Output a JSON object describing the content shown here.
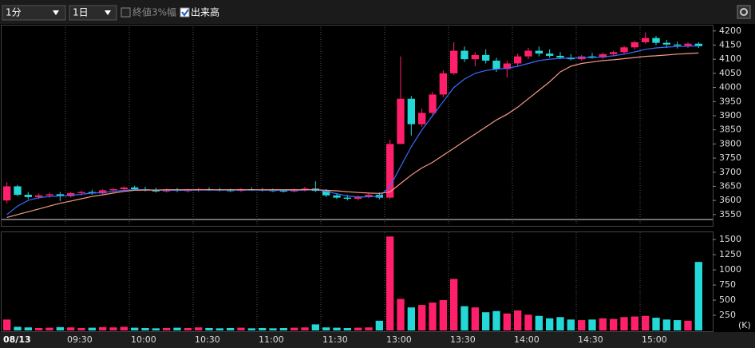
{
  "toolbar": {
    "interval": "1分",
    "span": "1日",
    "option_close_range": "終値3%幅",
    "option_volume": "出来高"
  },
  "chart_data": [
    {
      "type": "candlestick",
      "categories": [
        "08/13",
        null,
        null,
        null,
        null,
        null,
        "09:30",
        null,
        null,
        null,
        null,
        null,
        "10:00",
        null,
        null,
        null,
        null,
        null,
        "10:30",
        null,
        null,
        null,
        null,
        null,
        "11:00",
        null,
        null,
        null,
        null,
        null,
        "11:30",
        null,
        null,
        null,
        null,
        null,
        "13:00",
        null,
        null,
        null,
        null,
        null,
        "13:30",
        null,
        null,
        null,
        null,
        null,
        "14:00",
        null,
        null,
        null,
        null,
        null,
        "14:30",
        null,
        null,
        null,
        null,
        null,
        "15:00",
        null,
        null,
        null,
        null,
        null
      ],
      "ohlc": [
        [
          3600,
          3665,
          3590,
          3650
        ],
        [
          3650,
          3655,
          3615,
          3620
        ],
        [
          3620,
          3630,
          3605,
          3612
        ],
        [
          3612,
          3625,
          3605,
          3618
        ],
        [
          3618,
          3628,
          3610,
          3622
        ],
        [
          3622,
          3630,
          3598,
          3615
        ],
        [
          3615,
          3630,
          3610,
          3626
        ],
        [
          3626,
          3635,
          3618,
          3630
        ],
        [
          3630,
          3638,
          3620,
          3625
        ],
        [
          3625,
          3640,
          3622,
          3636
        ],
        [
          3636,
          3645,
          3630,
          3640
        ],
        [
          3640,
          3650,
          3635,
          3646
        ],
        [
          3646,
          3652,
          3636,
          3640
        ],
        [
          3640,
          3648,
          3632,
          3636
        ],
        [
          3636,
          3645,
          3628,
          3632
        ],
        [
          3632,
          3642,
          3628,
          3638
        ],
        [
          3638,
          3644,
          3630,
          3634
        ],
        [
          3634,
          3642,
          3628,
          3636
        ],
        [
          3636,
          3645,
          3630,
          3640
        ],
        [
          3640,
          3646,
          3634,
          3638
        ],
        [
          3638,
          3644,
          3632,
          3636
        ],
        [
          3636,
          3642,
          3630,
          3634
        ],
        [
          3634,
          3644,
          3630,
          3640
        ],
        [
          3640,
          3646,
          3634,
          3638
        ],
        [
          3638,
          3644,
          3632,
          3636
        ],
        [
          3636,
          3642,
          3630,
          3634
        ],
        [
          3634,
          3640,
          3628,
          3632
        ],
        [
          3632,
          3642,
          3628,
          3638
        ],
        [
          3638,
          3648,
          3632,
          3642
        ],
        [
          3642,
          3668,
          3630,
          3634
        ],
        [
          3634,
          3640,
          3612,
          3618
        ],
        [
          3618,
          3626,
          3605,
          3610
        ],
        [
          3610,
          3620,
          3600,
          3606
        ],
        [
          3606,
          3618,
          3600,
          3614
        ],
        [
          3614,
          3626,
          3608,
          3620
        ],
        [
          3620,
          3628,
          3604,
          3610
        ],
        [
          3610,
          3815,
          3605,
          3800
        ],
        [
          3800,
          4110,
          3800,
          3960
        ],
        [
          3960,
          3970,
          3830,
          3870
        ],
        [
          3870,
          3925,
          3860,
          3910
        ],
        [
          3910,
          3985,
          3900,
          3975
        ],
        [
          3975,
          4060,
          3965,
          4050
        ],
        [
          4050,
          4160,
          4045,
          4130
        ],
        [
          4130,
          4145,
          4090,
          4100
        ],
        [
          4100,
          4125,
          4075,
          4115
        ],
        [
          4115,
          4135,
          4085,
          4095
        ],
        [
          4095,
          4105,
          4055,
          4065
        ],
        [
          4065,
          4095,
          4035,
          4085
        ],
        [
          4085,
          4120,
          4075,
          4110
        ],
        [
          4110,
          4140,
          4100,
          4130
        ],
        [
          4130,
          4145,
          4110,
          4120
        ],
        [
          4120,
          4135,
          4105,
          4112
        ],
        [
          4112,
          4125,
          4100,
          4106
        ],
        [
          4106,
          4118,
          4096,
          4100
        ],
        [
          4100,
          4115,
          4095,
          4110
        ],
        [
          4110,
          4122,
          4102,
          4106
        ],
        [
          4106,
          4124,
          4100,
          4118
        ],
        [
          4118,
          4130,
          4110,
          4125
        ],
        [
          4125,
          4148,
          4118,
          4142
        ],
        [
          4142,
          4165,
          4135,
          4160
        ],
        [
          4160,
          4195,
          4155,
          4175
        ],
        [
          4175,
          4182,
          4150,
          4158
        ],
        [
          4158,
          4168,
          4140,
          4152
        ],
        [
          4152,
          4162,
          4138,
          4148
        ],
        [
          4148,
          4160,
          4140,
          4155
        ],
        [
          4155,
          4160,
          4140,
          4146
        ]
      ],
      "up_color": "#ff1f6b",
      "down_color": "#24d8d8",
      "series": [
        {
          "color": "#3a6cff",
          "values": [
            3550,
            3580,
            3600,
            3610,
            3614,
            3616,
            3618,
            3622,
            3626,
            3628,
            3632,
            3636,
            3638,
            3638,
            3637,
            3636,
            3636,
            3636,
            3637,
            3637,
            3637,
            3637,
            3637,
            3637,
            3637,
            3636,
            3636,
            3636,
            3637,
            3638,
            3632,
            3624,
            3616,
            3612,
            3613,
            3614,
            3650,
            3720,
            3790,
            3850,
            3900,
            3950,
            4000,
            4030,
            4050,
            4060,
            4065,
            4068,
            4075,
            4085,
            4095,
            4100,
            4103,
            4104,
            4105,
            4106,
            4108,
            4112,
            4118,
            4126,
            4135,
            4140,
            4143,
            4145,
            4146,
            4147
          ]
        },
        {
          "color": "#f59a86",
          "values": [
            3540,
            3550,
            3560,
            3570,
            3580,
            3590,
            3598,
            3606,
            3614,
            3620,
            3626,
            3632,
            3636,
            3637,
            3637,
            3638,
            3638,
            3638,
            3638,
            3638,
            3638,
            3638,
            3638,
            3638,
            3638,
            3638,
            3638,
            3638,
            3638,
            3638,
            3636,
            3634,
            3631,
            3628,
            3626,
            3625,
            3630,
            3660,
            3690,
            3715,
            3735,
            3760,
            3785,
            3810,
            3835,
            3860,
            3885,
            3905,
            3930,
            3960,
            3990,
            4020,
            4055,
            4075,
            4085,
            4090,
            4095,
            4098,
            4102,
            4106,
            4110,
            4112,
            4115,
            4118,
            4120,
            4122
          ]
        }
      ],
      "ylim": [
        3510,
        4222
      ],
      "yticks": [
        3550,
        3600,
        3650,
        3700,
        3750,
        3800,
        3850,
        3900,
        3950,
        4000,
        4050,
        4100,
        4150,
        4200
      ]
    },
    {
      "type": "bar",
      "values": [
        180,
        60,
        50,
        40,
        45,
        55,
        50,
        40,
        45,
        55,
        50,
        60,
        45,
        40,
        35,
        40,
        45,
        40,
        50,
        40,
        35,
        40,
        45,
        35,
        40,
        35,
        40,
        45,
        50,
        100,
        50,
        45,
        40,
        45,
        50,
        160,
        1550,
        520,
        380,
        420,
        460,
        500,
        850,
        400,
        380,
        300,
        320,
        280,
        330,
        260,
        240,
        200,
        220,
        180,
        170,
        180,
        200,
        190,
        220,
        230,
        240,
        210,
        180,
        170,
        160,
        1130
      ],
      "unit": "(K)",
      "ylim": [
        0,
        1620
      ],
      "yticks": [
        250,
        500,
        750,
        1000,
        1250,
        1500
      ]
    }
  ]
}
